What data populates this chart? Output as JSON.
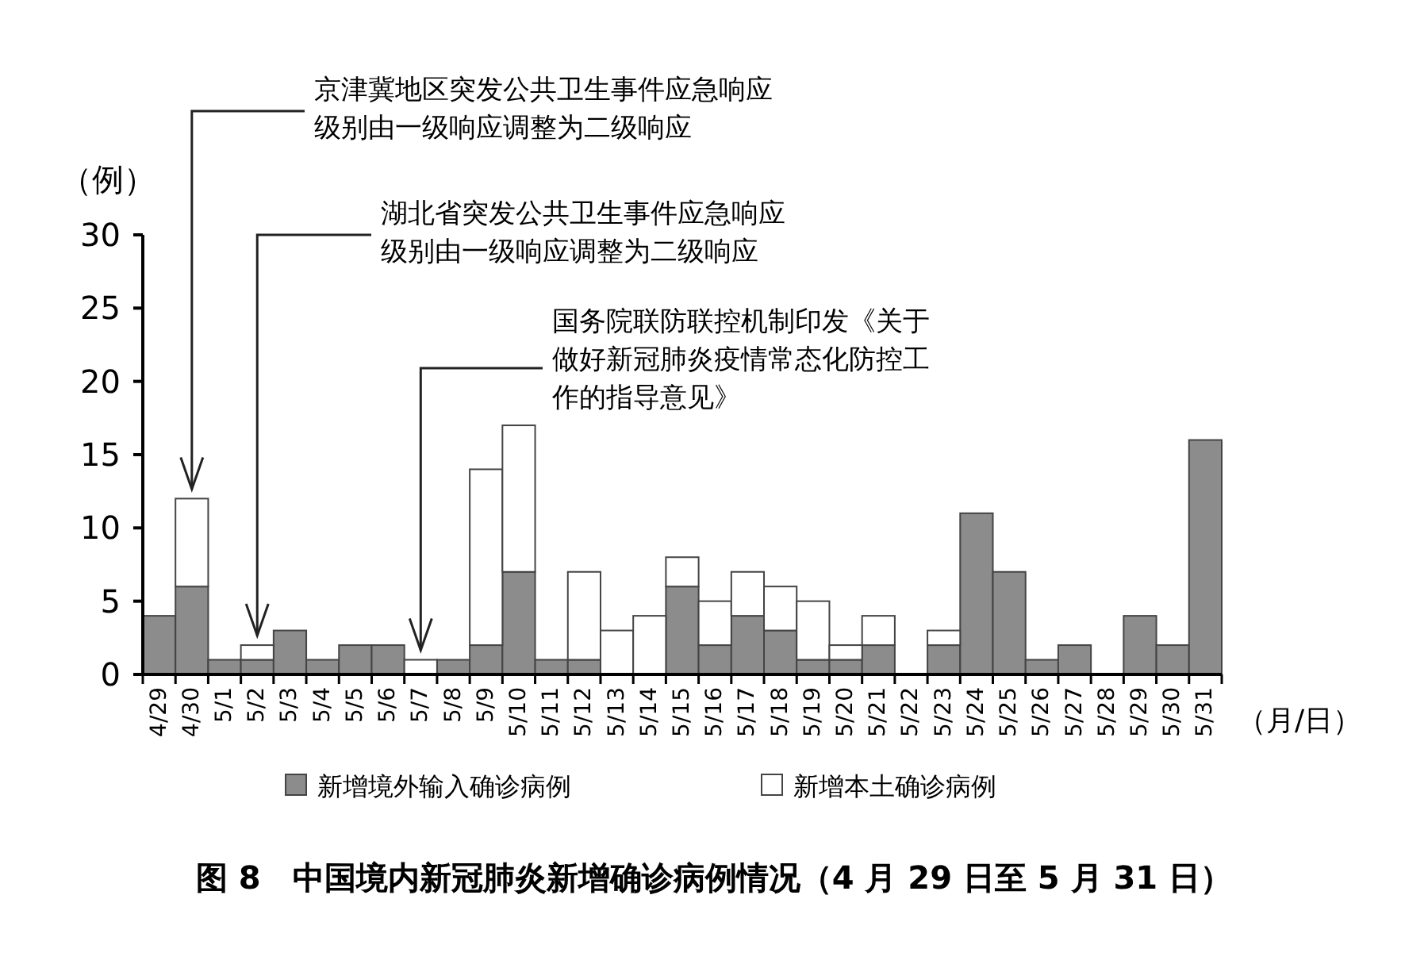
{
  "chart_data": {
    "type": "bar",
    "stacked": true,
    "title": "图 8　中国境内新冠肺炎新增确诊病例情况（4 月 29 日至 5 月 31 日）",
    "ylabel": "（例）",
    "xlabel": "（月/日）",
    "categories": [
      "4/29",
      "4/30",
      "5/1",
      "5/2",
      "5/3",
      "5/4",
      "5/5",
      "5/6",
      "5/7",
      "5/8",
      "5/9",
      "5/10",
      "5/11",
      "5/12",
      "5/13",
      "5/14",
      "5/15",
      "5/16",
      "5/17",
      "5/18",
      "5/19",
      "5/20",
      "5/21",
      "5/22",
      "5/23",
      "5/24",
      "5/25",
      "5/26",
      "5/27",
      "5/28",
      "5/29",
      "5/30",
      "5/31"
    ],
    "series": [
      {
        "name": "新增境外输入确诊病例",
        "color": "#8c8c8c",
        "values": [
          4,
          6,
          1,
          1,
          3,
          1,
          2,
          2,
          0,
          1,
          2,
          7,
          1,
          1,
          0,
          0,
          6,
          2,
          4,
          3,
          1,
          1,
          2,
          0,
          2,
          11,
          7,
          1,
          2,
          0,
          4,
          2,
          16
        ]
      },
      {
        "name": "新增本土确诊病例",
        "color": "#ffffff",
        "values": [
          0,
          6,
          0,
          1,
          0,
          0,
          0,
          0,
          1,
          0,
          12,
          10,
          0,
          6,
          3,
          4,
          2,
          3,
          3,
          3,
          4,
          1,
          2,
          0,
          1,
          0,
          0,
          0,
          0,
          0,
          0,
          0,
          0
        ]
      }
    ],
    "ylim": [
      0,
      30
    ],
    "yticks": [
      0,
      5,
      10,
      15,
      20,
      25,
      30
    ],
    "grid": false,
    "legend": "bottom",
    "annotations": [
      {
        "text": "京津冀地区突发公共卫生事件应急响应级别由一级响应调整为二级响应",
        "x": "4/30",
        "y": 12
      },
      {
        "text": "湖北省突发公共卫生事件应急响应级别由一级响应调整为二级响应",
        "x": "5/2",
        "y": 2
      },
      {
        "text": "国务院联防联控机制印发《关于做好新冠肺炎疫情常态化防控工作的指导意见》",
        "x": "5/7",
        "y": 1
      }
    ]
  }
}
